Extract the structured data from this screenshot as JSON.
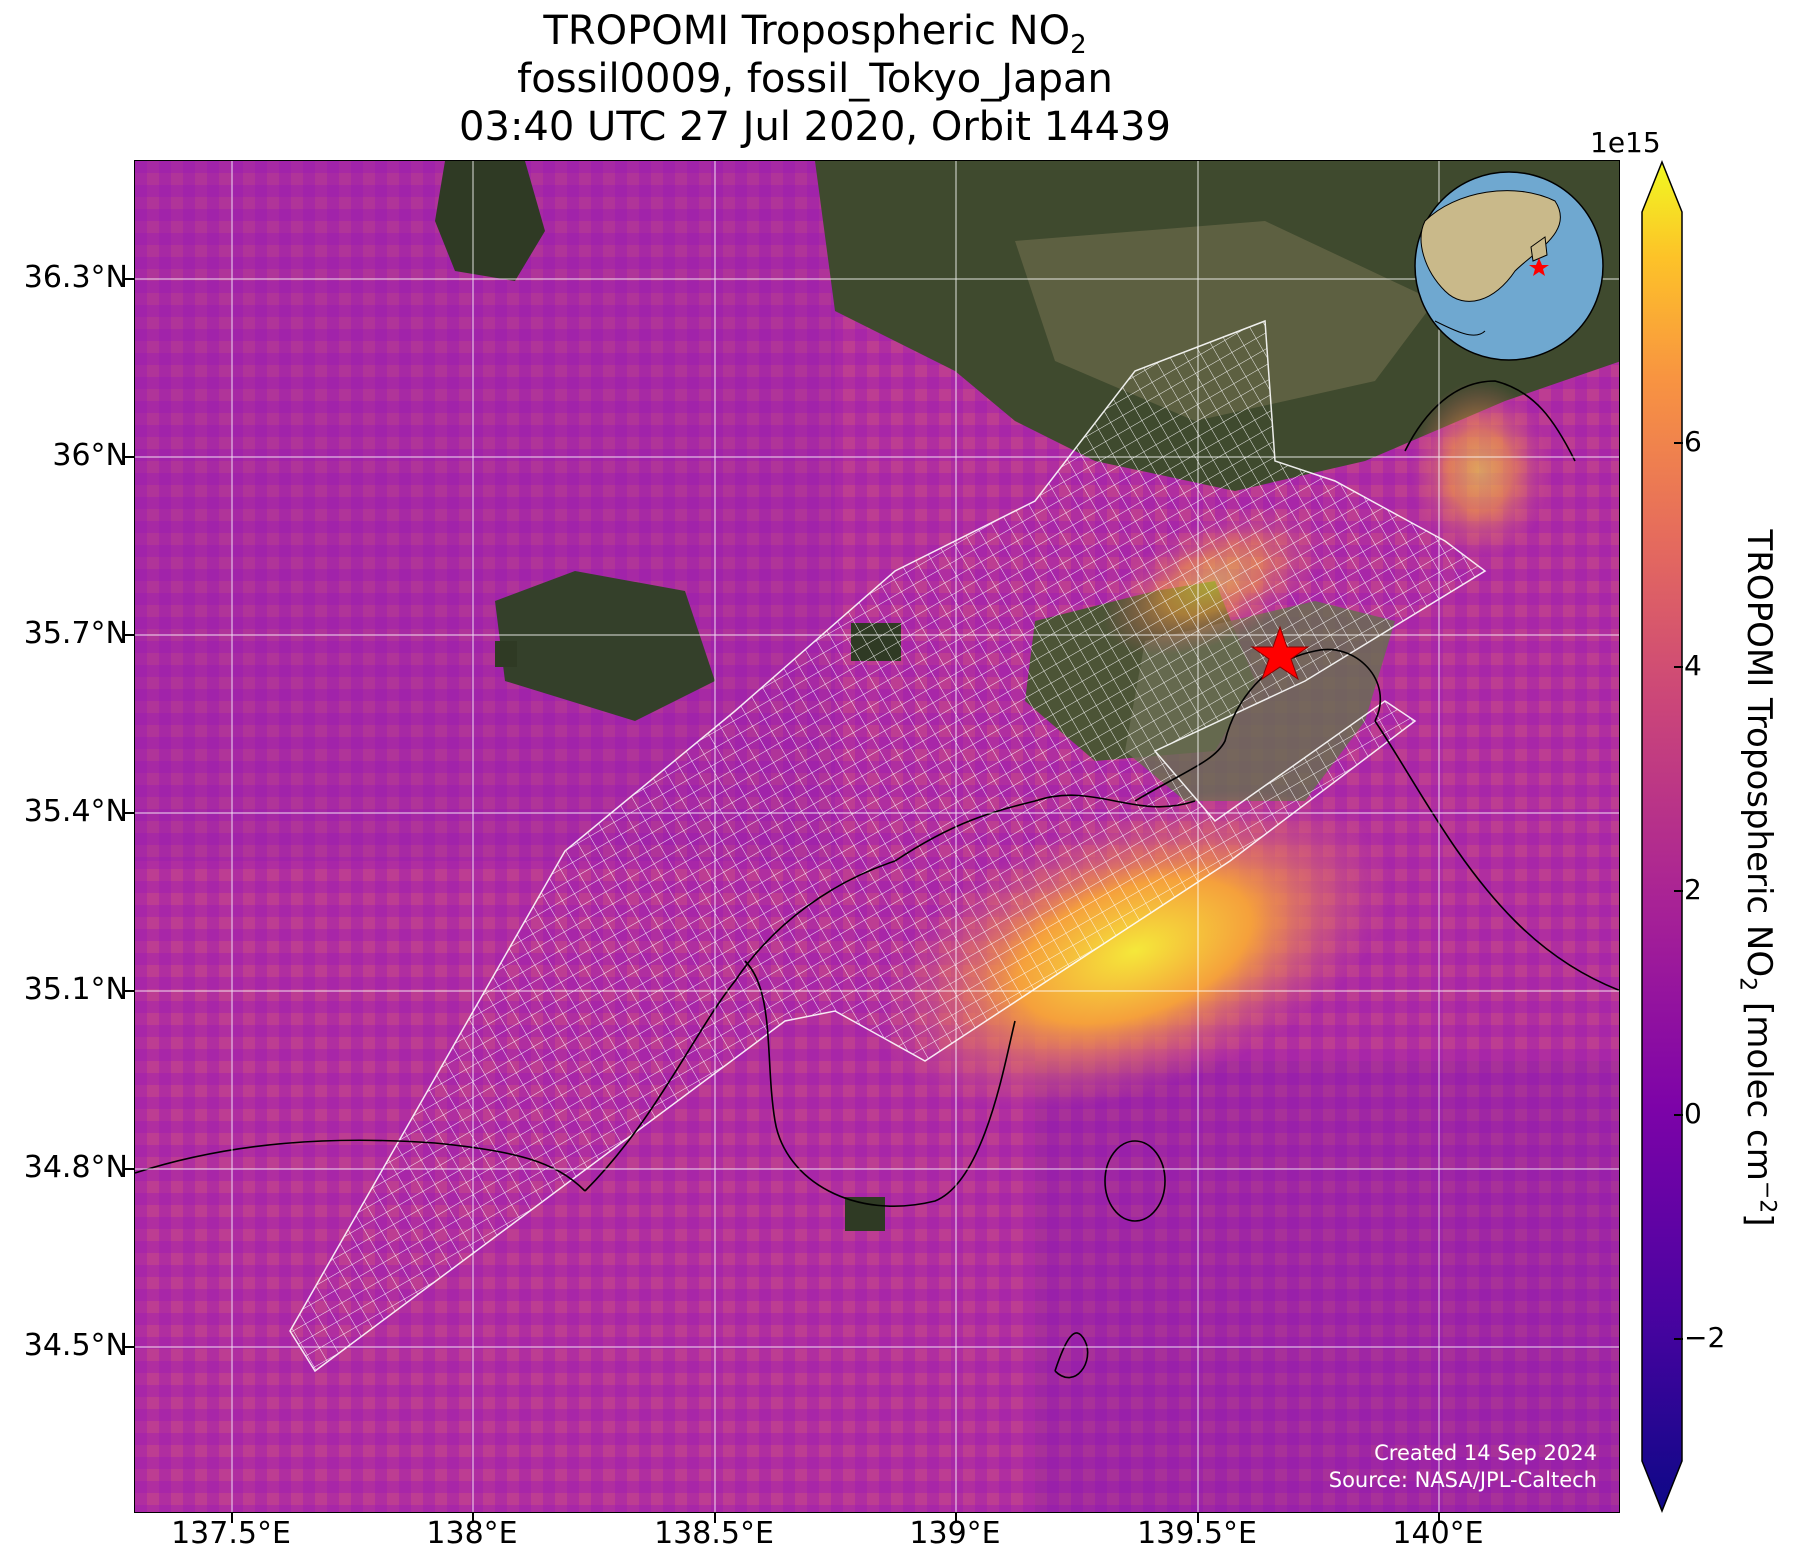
{
  "title": {
    "line1_main": "TROPOMI Tropospheric NO",
    "line1_sub": "2",
    "line2": "fossil0009, fossil_Tokyo_Japan",
    "line3": "03:40 UTC 27 Jul 2020, Orbit 14439"
  },
  "map": {
    "lon_ticks": [
      "137.5°E",
      "138°E",
      "138.5°E",
      "139°E",
      "139.5°E",
      "140°E"
    ],
    "lat_ticks": [
      "36.3°N",
      "36°N",
      "35.7°N",
      "35.4°N",
      "35.1°N",
      "34.8°N",
      "34.5°N"
    ],
    "lon_range": [
      137.3,
      140.4
    ],
    "lat_range": [
      34.3,
      36.5
    ],
    "grid": true,
    "target_marker": "red-star",
    "inset": "globe-locator",
    "credits": {
      "line1": "Created 14 Sep 2024",
      "line2": "Source: NASA/JPL-Caltech"
    }
  },
  "colorbar": {
    "exponent": "1e15",
    "ticks": [
      "6",
      "4",
      "2",
      "0",
      "−2"
    ],
    "label_main": "TROPOMI Tropospheric NO",
    "label_sub": "2",
    "label_unit": " [molec cm",
    "label_unit_sup": "−2",
    "label_end": "]",
    "colormap": "plasma",
    "range": [
      -3,
      7.8
    ]
  },
  "colors": {
    "background_no2": "#b42ea0",
    "hotspot": "#f5e83a",
    "target_star": "#ff0000",
    "plume_outline": "#ffffff"
  }
}
